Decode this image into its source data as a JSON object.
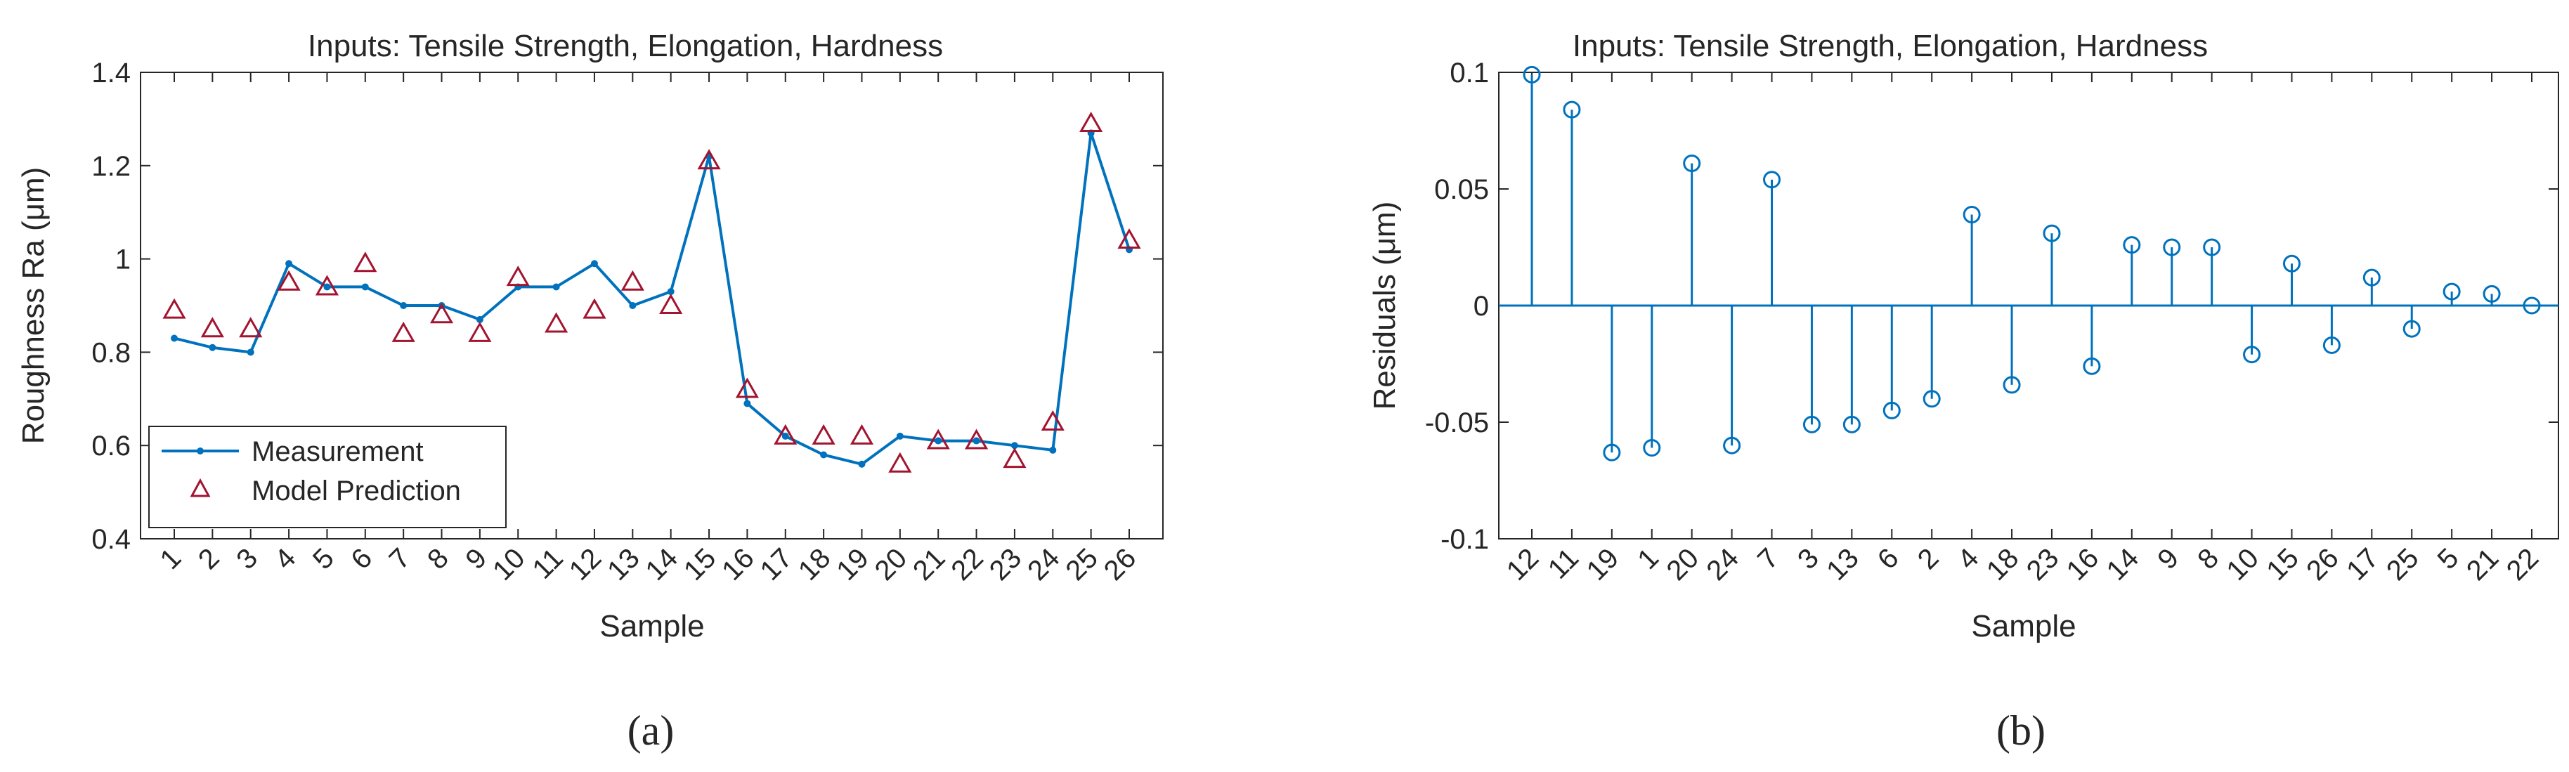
{
  "colors": {
    "measurement": "#0072BD",
    "prediction": "#A2142F",
    "residual": "#0072BD",
    "axis": "#262626",
    "background": "#ffffff"
  },
  "panel_labels": [
    "(a)",
    "(b)"
  ],
  "chart_data": [
    {
      "type": "line",
      "title": "Inputs: Tensile Strength, Elongation, Hardness",
      "xlabel": "Sample",
      "ylabel": "Roughness Ra (μm)",
      "categories": [
        "1",
        "2",
        "3",
        "4",
        "5",
        "6",
        "7",
        "8",
        "9",
        "10",
        "11",
        "12",
        "13",
        "14",
        "15",
        "16",
        "17",
        "18",
        "19",
        "20",
        "21",
        "22",
        "23",
        "24",
        "25",
        "26"
      ],
      "ylim": [
        0.4,
        1.4
      ],
      "yticks": [
        "0.4",
        "0.6",
        "0.8",
        "1",
        "1.2",
        "1.4"
      ],
      "grid": false,
      "legend_position": "bottom-left",
      "series": [
        {
          "name": "Measurement",
          "style": "line-dot",
          "values": [
            0.83,
            0.81,
            0.8,
            0.99,
            0.94,
            0.94,
            0.9,
            0.9,
            0.87,
            0.94,
            0.94,
            0.99,
            0.9,
            0.93,
            1.22,
            0.69,
            0.62,
            0.58,
            0.56,
            0.62,
            0.61,
            0.61,
            0.6,
            0.59,
            1.27,
            1.02
          ]
        },
        {
          "name": "Model Prediction",
          "style": "triangle",
          "values": [
            0.89,
            0.85,
            0.85,
            0.95,
            0.94,
            0.99,
            0.84,
            0.88,
            0.84,
            0.96,
            0.86,
            0.89,
            0.95,
            0.9,
            1.21,
            0.72,
            0.62,
            0.62,
            0.62,
            0.56,
            0.61,
            0.61,
            0.57,
            0.65,
            1.29,
            1.04
          ]
        }
      ]
    },
    {
      "type": "stem",
      "title": "Inputs: Tensile Strength, Elongation, Hardness",
      "xlabel": "Sample",
      "ylabel": "Residuals (μm)",
      "categories": [
        "12",
        "11",
        "19",
        "1",
        "20",
        "24",
        "7",
        "3",
        "13",
        "6",
        "2",
        "4",
        "18",
        "23",
        "16",
        "14",
        "9",
        "8",
        "10",
        "15",
        "26",
        "17",
        "25",
        "5",
        "21",
        "22"
      ],
      "ylim": [
        -0.1,
        0.1
      ],
      "yticks": [
        "-0.1",
        "-0.05",
        "0",
        "0.05",
        "0.1"
      ],
      "grid": false,
      "values": [
        0.099,
        0.084,
        -0.063,
        -0.061,
        0.061,
        -0.06,
        0.054,
        -0.051,
        -0.051,
        -0.045,
        -0.04,
        0.039,
        -0.034,
        0.031,
        -0.026,
        0.026,
        0.025,
        0.025,
        -0.021,
        0.018,
        -0.017,
        0.012,
        -0.01,
        0.006,
        0.005,
        0.0
      ]
    }
  ]
}
